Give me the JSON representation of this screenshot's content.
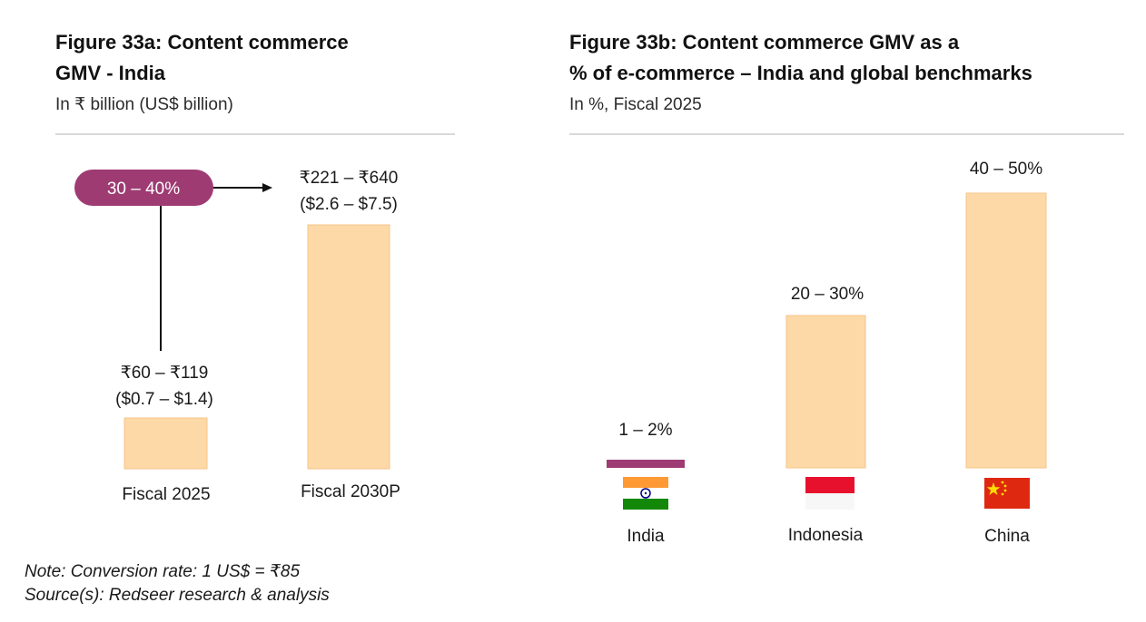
{
  "colors": {
    "bar_fill": "#fdd9a7",
    "bar_stroke": "#f5c48a",
    "cagr_pill": "#9e3b73",
    "divider": "#d9d9d9",
    "india_saffron": "#ff9933",
    "india_green": "#138808",
    "india_chakra": "#000080",
    "indonesia_red": "#e8112d",
    "china_red": "#de2910",
    "china_star": "#ffde00"
  },
  "figure_a": {
    "title_line1": "Figure 33a: Content commerce",
    "title_line2": "GMV - India",
    "subtitle": "In ₹ billion (US$ billion)",
    "cagr_label": "30 – 40%"
  },
  "figure_b": {
    "title_line1": "Figure 33b: Content commerce GMV as a",
    "title_line2": "% of e-commerce – India and global benchmarks",
    "subtitle": "In %, Fiscal 2025"
  },
  "chart_data": [
    {
      "type": "bar",
      "title": "Figure 33a: Content commerce GMV - India",
      "subtitle": "In ₹ billion (US$ billion)",
      "categories": [
        "Fiscal 2025",
        "Fiscal 2030P"
      ],
      "series": [
        {
          "values_inr_range": [
            [
              60,
              119
            ],
            [
              221,
              640
            ]
          ],
          "values_usd_range": [
            [
              0.7,
              1.4
            ],
            [
              2.6,
              7.5
            ]
          ]
        }
      ],
      "data_labels": [
        [
          "₹60 – ₹119",
          "($0.7 – $1.4)"
        ],
        [
          "₹221 – ₹640",
          "($2.6 – $7.5)"
        ]
      ],
      "annotation": "30 – 40%",
      "grid": false,
      "legend": "none"
    },
    {
      "type": "bar",
      "title": "Figure 33b: Content commerce GMV as a % of e-commerce – India and global benchmarks",
      "subtitle": "In %, Fiscal 2025",
      "categories": [
        "India",
        "Indonesia",
        "China"
      ],
      "series": [
        {
          "values_range": [
            [
              1,
              2
            ],
            [
              20,
              30
            ],
            [
              40,
              50
            ]
          ]
        }
      ],
      "data_labels": [
        "1 – 2%",
        "20 – 30%",
        "40 – 50%"
      ],
      "category_icons": [
        "india-flag-icon",
        "indonesia-flag-icon",
        "china-flag-icon"
      ],
      "grid": false,
      "legend": "none"
    }
  ],
  "footnotes": {
    "note": "Note: Conversion rate: 1 US$ = ₹85",
    "source": "Source(s): Redseer research & analysis"
  }
}
